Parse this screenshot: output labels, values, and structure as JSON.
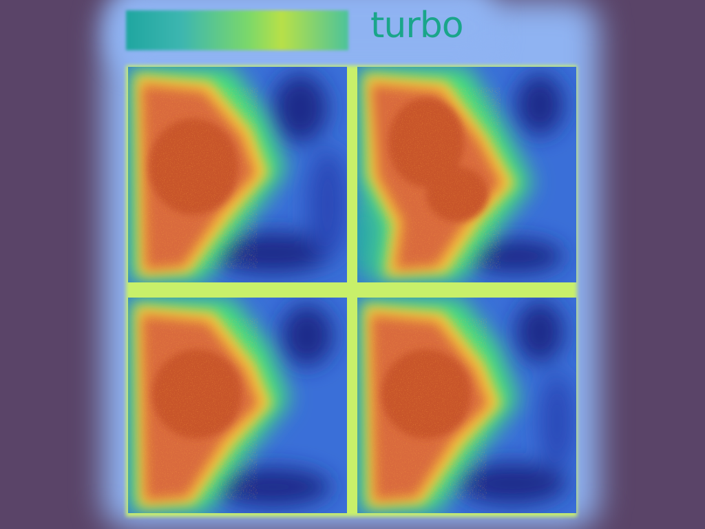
{
  "colormap": {
    "name": "turbo"
  },
  "panels": [
    {
      "id": "top-left"
    },
    {
      "id": "top-right"
    },
    {
      "id": "bottom-left"
    },
    {
      "id": "bottom-right"
    }
  ]
}
